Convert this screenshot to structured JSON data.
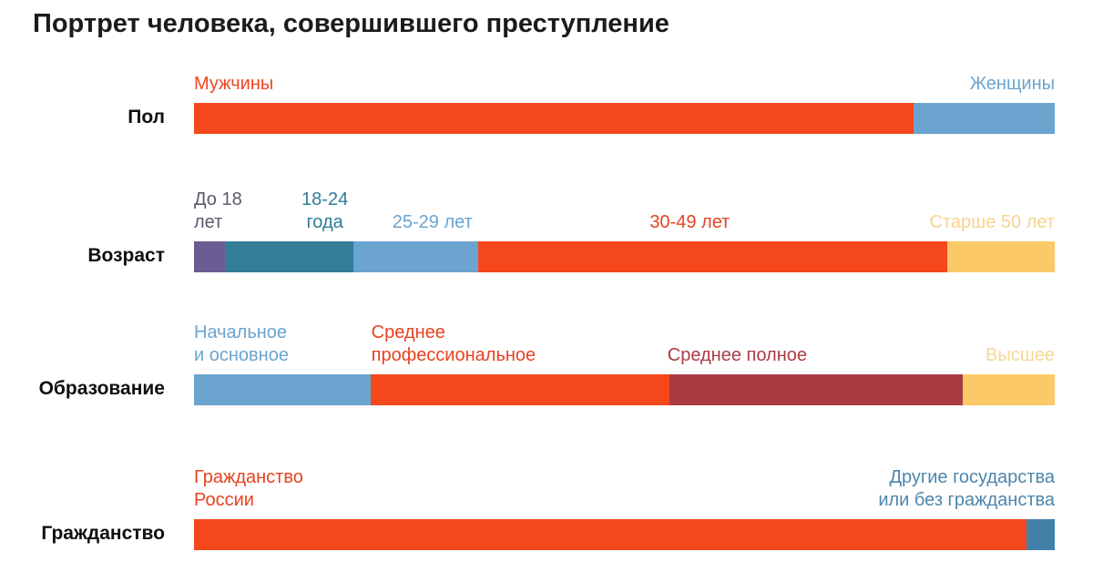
{
  "title": "Портрет человека, совершившего преступление",
  "background_color": "#ffffff",
  "palette": {
    "red": "#f4481c",
    "light_blue": "#6ba4cf",
    "purple": "#6a5c92",
    "teal": "#337d98",
    "yellow": "#fbc967",
    "dark_red": "#a93b43",
    "steel_blue": "#4181a9",
    "title_color": "#1b1b1b"
  },
  "chart_data": {
    "type": "bar",
    "subtype": "horizontal-stacked-100pct",
    "title": "Портрет человека, совершившего преступление",
    "xlim": [
      0,
      100
    ],
    "grid": false,
    "legend": "inline-labels-above-bars",
    "categories": [
      "Пол",
      "Возраст",
      "Образование",
      "Гражданство"
    ],
    "rows": [
      {
        "category": "Пол",
        "segments": [
          {
            "label": "Мужчины",
            "pct": 83.6,
            "color": "#f4481c",
            "label_color": "#ee4520",
            "align": "left"
          },
          {
            "label": "Женщины",
            "pct": 16.4,
            "color": "#6ba4cf",
            "label_color": "#6ba4cf",
            "align": "right"
          }
        ]
      },
      {
        "category": "Возраст",
        "segments": [
          {
            "label": "До 18 лет",
            "lines": [
              "До 18",
              "лет"
            ],
            "pct": 3.6,
            "color": "#6a5c92",
            "label_color": "#5c5a6e",
            "align": "left"
          },
          {
            "label": "18-24 года",
            "lines": [
              "18-24",
              "года"
            ],
            "pct": 14.9,
            "color": "#337d98",
            "label_color": "#2e7b98",
            "align": "center",
            "x_pct": 15.2
          },
          {
            "label": "25-29 лет",
            "pct": 14.5,
            "color": "#6ba4cf",
            "label_color": "#6ba4cf",
            "align": "center",
            "x_pct": 27.7
          },
          {
            "label": "30-49 лет",
            "pct": 54.5,
            "color": "#f4481c",
            "label_color": "#e8411f",
            "align": "center",
            "x_pct": 57.6
          },
          {
            "label": "Старше 50 лет",
            "pct": 12.5,
            "color": "#fbc967",
            "label_color": "#f8d38f",
            "align": "right"
          }
        ]
      },
      {
        "category": "Образование",
        "segments": [
          {
            "label": "Начальное и основное",
            "lines": [
              "Начальное",
              "и основное"
            ],
            "pct": 20.5,
            "color": "#6ba4cf",
            "label_color": "#6ba4cf",
            "align": "left"
          },
          {
            "label": "Среднее профессиональное",
            "lines": [
              "Среднее",
              "профессиональное"
            ],
            "pct": 34.7,
            "color": "#f4481c",
            "label_color": "#e8411f",
            "align": "left",
            "x_pct": 20.6
          },
          {
            "label": "Среднее полное",
            "pct": 34.1,
            "color": "#a93b43",
            "label_color": "#a93b43",
            "align": "left",
            "x_pct": 55.0
          },
          {
            "label": "Высшее",
            "pct": 10.7,
            "color": "#fbc967",
            "label_color": "#f6d795",
            "align": "right"
          }
        ]
      },
      {
        "category": "Гражданство",
        "segments": [
          {
            "label": "Гражданство России",
            "lines": [
              "Гражданство",
              "России"
            ],
            "pct": 96.7,
            "color": "#f4481c",
            "label_color": "#e8411f",
            "align": "left"
          },
          {
            "label": "Другие государства или без гражданства",
            "lines": [
              "Другие государства",
              "или без гражданства"
            ],
            "pct": 3.3,
            "color": "#4181a9",
            "label_color": "#4d86ab",
            "align": "right"
          }
        ]
      }
    ]
  }
}
